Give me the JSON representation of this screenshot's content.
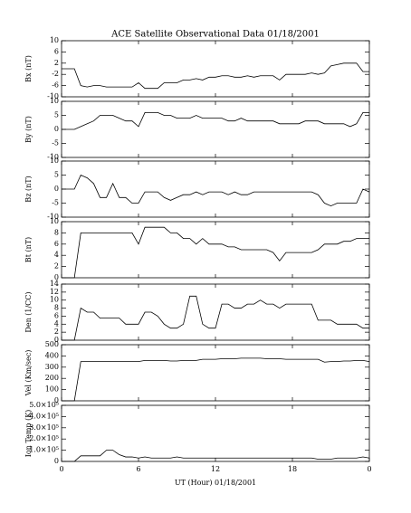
{
  "chart_data": {
    "type": "line",
    "title": "ACE Satellite Observational Data   01/18/2001",
    "xlabel": "UT (Hour)  01/18/2001",
    "xlim": [
      0,
      24
    ],
    "xticks": [
      0,
      6,
      12,
      18,
      {
        "value": 24,
        "label": "0"
      }
    ],
    "x": [
      0,
      0.5,
      1,
      1.5,
      2,
      2.5,
      3,
      3.5,
      4,
      4.5,
      5,
      5.5,
      6,
      6.5,
      7,
      7.5,
      8,
      8.5,
      9,
      9.5,
      10,
      10.5,
      11,
      11.5,
      12,
      12.5,
      13,
      13.5,
      14,
      14.5,
      15,
      15.5,
      16,
      16.5,
      17,
      17.5,
      18,
      18.5,
      19,
      19.5,
      20,
      20.5,
      21,
      21.5,
      22,
      22.5,
      23,
      23.5,
      24
    ],
    "panels": [
      {
        "ylabel": "Bx (nT)",
        "ylim": [
          -10,
          10
        ],
        "yticks": [
          -10,
          -6,
          -2,
          2,
          6,
          10
        ],
        "values": [
          0,
          0,
          0,
          -6,
          -6.5,
          -6,
          -6,
          -6.5,
          -6.5,
          -6.5,
          -6.5,
          -6.5,
          -5,
          -7,
          -7,
          -7,
          -5,
          -5,
          -5,
          -4,
          -4,
          -3.5,
          -4,
          -3,
          -3,
          -2.5,
          -2.5,
          -3,
          -3,
          -2.5,
          -3,
          -2.5,
          -2.5,
          -2.5,
          -4,
          -2,
          -2,
          -2,
          -2,
          -1.5,
          -2,
          -1.5,
          1,
          1.5,
          2,
          2,
          2,
          -1,
          -1
        ]
      },
      {
        "ylabel": "By (nT)",
        "ylim": [
          -10,
          10
        ],
        "yticks": [
          -10,
          -5,
          0,
          5,
          10
        ],
        "values": [
          0,
          0,
          0,
          1,
          2,
          3,
          5,
          5,
          5,
          4,
          3,
          3,
          1,
          6,
          6,
          6,
          5,
          5,
          4,
          4,
          4,
          5,
          4,
          4,
          4,
          4,
          3,
          3,
          4,
          3,
          3,
          3,
          3,
          3,
          2,
          2,
          2,
          2,
          3,
          3,
          3,
          2,
          2,
          2,
          2,
          1,
          2,
          6,
          6
        ]
      },
      {
        "ylabel": "Bz (nT)",
        "ylim": [
          -10,
          10
        ],
        "yticks": [
          -10,
          -5,
          0,
          5,
          10
        ],
        "values": [
          0,
          0,
          0,
          5,
          4,
          2,
          -3,
          -3,
          2,
          -3,
          -3,
          -5,
          -5,
          -1,
          -1,
          -1,
          -3,
          -4,
          -3,
          -2,
          -2,
          -1,
          -2,
          -1,
          -1,
          -1,
          -2,
          -1,
          -2,
          -2,
          -1,
          -1,
          -1,
          -1,
          -1,
          -1,
          -1,
          -1,
          -1,
          -1,
          -2,
          -5,
          -6,
          -5,
          -5,
          -5,
          -5,
          0,
          -1
        ]
      },
      {
        "ylabel": "Bt (nT)",
        "ylim": [
          0,
          10
        ],
        "yticks": [
          0,
          2,
          4,
          6,
          8,
          10
        ],
        "values": [
          0,
          0,
          0,
          8,
          8,
          8,
          8,
          8,
          8,
          8,
          8,
          8,
          6,
          9,
          9,
          9,
          9,
          8,
          8,
          7,
          7,
          6,
          7,
          6,
          6,
          6,
          5.5,
          5.5,
          5,
          5,
          5,
          5,
          5,
          4.5,
          3,
          4.5,
          4.5,
          4.5,
          4.5,
          4.5,
          5,
          6,
          6,
          6,
          6.5,
          6.5,
          7,
          7,
          7
        ]
      },
      {
        "ylabel": "Den (1/CC)",
        "ylim": [
          0,
          14
        ],
        "yticks": [
          0,
          2,
          4,
          6,
          8,
          10,
          12,
          14
        ],
        "values": [
          0,
          0,
          0,
          8,
          7,
          7,
          5.5,
          5.5,
          5.5,
          5.5,
          4,
          4,
          4,
          7,
          7,
          6,
          4,
          3,
          3,
          4,
          11,
          11,
          4,
          3,
          3,
          9,
          9,
          8,
          8,
          9,
          9,
          10,
          9,
          9,
          8,
          9,
          9,
          9,
          9,
          9,
          5,
          5,
          5,
          4,
          4,
          4,
          4,
          3,
          3
        ]
      },
      {
        "ylabel": "Vel (Km/sec)",
        "ylim": [
          0,
          500
        ],
        "yticks": [
          0,
          100,
          200,
          300,
          400,
          500
        ],
        "values": [
          0,
          0,
          0,
          350,
          350,
          350,
          350,
          350,
          350,
          350,
          350,
          350,
          350,
          360,
          360,
          360,
          360,
          355,
          355,
          360,
          360,
          360,
          370,
          370,
          370,
          375,
          375,
          375,
          380,
          380,
          380,
          380,
          375,
          375,
          375,
          370,
          370,
          370,
          370,
          370,
          370,
          345,
          350,
          350,
          355,
          355,
          360,
          360,
          350
        ]
      },
      {
        "ylabel": "Ion Temp (K)",
        "ylim": [
          0,
          500000
        ],
        "yticks": [
          0,
          {
            "value": 100000,
            "label": "1.0×10⁵"
          },
          {
            "value": 200000,
            "label": "2.0×10⁵"
          },
          {
            "value": 300000,
            "label": "3.0×10⁵"
          },
          {
            "value": 400000,
            "label": "4.0×10⁵"
          },
          {
            "value": 500000,
            "label": "5.0×10⁵"
          }
        ],
        "values": [
          0,
          0,
          0,
          50000,
          50000,
          50000,
          50000,
          100000,
          100000,
          60000,
          40000,
          40000,
          30000,
          40000,
          30000,
          30000,
          30000,
          30000,
          40000,
          30000,
          30000,
          30000,
          30000,
          30000,
          30000,
          30000,
          30000,
          30000,
          30000,
          30000,
          30000,
          30000,
          30000,
          30000,
          30000,
          30000,
          30000,
          30000,
          30000,
          30000,
          20000,
          20000,
          20000,
          30000,
          30000,
          30000,
          30000,
          40000,
          30000
        ]
      }
    ]
  }
}
